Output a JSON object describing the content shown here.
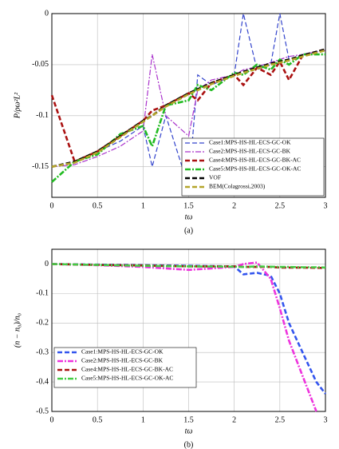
{
  "chart_data": [
    {
      "type": "line",
      "caption": "(a)",
      "x_label": "tω",
      "y_label": "P/ρω²L²",
      "x": [
        0,
        0.25,
        0.5,
        0.75,
        1,
        1.1,
        1.25,
        1.5,
        1.6,
        1.75,
        2,
        2.1,
        2.25,
        2.4,
        2.5,
        2.6,
        2.75,
        3
      ],
      "xlim": [
        0,
        3
      ],
      "xticks": [
        0,
        0.5,
        1,
        1.5,
        2,
        2.5,
        3
      ],
      "ylim": [
        -0.18,
        0
      ],
      "yticks": [
        0,
        -0.05,
        -0.1,
        -0.15
      ],
      "grid": true,
      "legend": "lower right",
      "series": [
        {
          "name": "Case1:MPS-HS-HL-ECS-GC-OK",
          "color": "#3344cc",
          "dash": "dash",
          "thick": false,
          "values": [
            -0.15,
            -0.145,
            -0.135,
            -0.125,
            -0.11,
            -0.15,
            -0.1,
            -0.17,
            -0.06,
            -0.07,
            -0.06,
            0,
            -0.055,
            -0.05,
            0,
            -0.045,
            -0.04,
            -0.035
          ]
        },
        {
          "name": "Case2:MPS-HS-HL-ECS-GC-BK",
          "color": "#aa33cc",
          "dash": "dashdot",
          "thick": false,
          "values": [
            -0.15,
            -0.148,
            -0.14,
            -0.13,
            -0.115,
            -0.04,
            -0.1,
            -0.12,
            -0.075,
            -0.065,
            -0.06,
            -0.055,
            -0.052,
            -0.048,
            -0.045,
            -0.042,
            -0.04,
            -0.036
          ]
        },
        {
          "name": "Case4:MPS-HS-HL-ECS-GC-BK-AC",
          "color": "#aa1111",
          "dash": "dash",
          "thick": true,
          "values": [
            -0.08,
            -0.145,
            -0.135,
            -0.12,
            -0.105,
            -0.095,
            -0.09,
            -0.078,
            -0.085,
            -0.068,
            -0.06,
            -0.07,
            -0.053,
            -0.06,
            -0.047,
            -0.065,
            -0.041,
            -0.035
          ]
        },
        {
          "name": "Case5:MPS-HS-HL-ECS-GC-OK-AC",
          "color": "#22bb22",
          "dash": "dashdot",
          "thick": true,
          "values": [
            -0.165,
            -0.145,
            -0.138,
            -0.118,
            -0.11,
            -0.13,
            -0.09,
            -0.085,
            -0.07,
            -0.075,
            -0.058,
            -0.06,
            -0.05,
            -0.055,
            -0.045,
            -0.05,
            -0.04,
            -0.04
          ]
        },
        {
          "name": "VOF",
          "color": "#000000",
          "dash": "dash",
          "thick": true,
          "values": [
            -0.15,
            -0.145,
            -0.135,
            -0.12,
            -0.105,
            -0.1,
            -0.09,
            -0.078,
            -0.074,
            -0.068,
            -0.06,
            -0.057,
            -0.053,
            -0.049,
            -0.047,
            -0.045,
            -0.041,
            -0.035
          ]
        },
        {
          "name": "BEM(Colagrossi,2003)",
          "color": "#b5a52a",
          "dash": "dash",
          "thick": true,
          "values": [
            -0.15,
            -0.146,
            -0.136,
            -0.121,
            -0.106,
            -0.1,
            -0.091,
            -0.079,
            -0.075,
            -0.069,
            -0.061,
            -0.058,
            -0.054,
            -0.05,
            -0.048,
            -0.046,
            -0.042,
            -0.036
          ]
        }
      ]
    },
    {
      "type": "line",
      "caption": "(b)",
      "x_label": "tω",
      "y_label": "(n − n₀)/n₀",
      "x": [
        0,
        0.5,
        1,
        1.5,
        2,
        2.1,
        2.25,
        2.4,
        2.5,
        2.6,
        2.75,
        2.9,
        3
      ],
      "xlim": [
        0,
        3
      ],
      "xticks": [
        0,
        0.5,
        1,
        1.5,
        2,
        2.5,
        3
      ],
      "ylim": [
        -0.5,
        0.05
      ],
      "yticks": [
        0,
        -0.1,
        -0.2,
        -0.3,
        -0.4,
        -0.5
      ],
      "grid": true,
      "legend": "lower left",
      "series": [
        {
          "name": "Case1:MPS-HS-HL-ECS-GC-OK",
          "color": "#3355ee",
          "dash": "dash",
          "thick": true,
          "values": [
            0,
            -0.002,
            -0.004,
            -0.006,
            -0.008,
            -0.035,
            -0.03,
            -0.04,
            -0.1,
            -0.2,
            -0.3,
            -0.4,
            -0.44
          ]
        },
        {
          "name": "Case2:MPS-HS-HL-ECS-GC-BK",
          "color": "#ee33dd",
          "dash": "dashdot",
          "thick": true,
          "values": [
            0,
            -0.004,
            -0.01,
            -0.02,
            -0.01,
            0,
            0.005,
            -0.05,
            -0.15,
            -0.26,
            -0.38,
            -0.5,
            null
          ]
        },
        {
          "name": "Case4:MPS-HS-HL-ECS-GC-BK-AC",
          "color": "#aa1111",
          "dash": "dash",
          "thick": true,
          "values": [
            0,
            -0.003,
            -0.005,
            -0.008,
            -0.008,
            -0.01,
            -0.01,
            -0.01,
            -0.012,
            -0.012,
            -0.012,
            -0.013,
            -0.013
          ]
        },
        {
          "name": "Case5:MPS-HS-HL-ECS-GC-OK-AC",
          "color": "#44cc44",
          "dash": "dashdot",
          "thick": true,
          "values": [
            0,
            -0.003,
            -0.006,
            -0.008,
            -0.009,
            -0.01,
            -0.008,
            -0.009,
            -0.01,
            -0.01,
            -0.011,
            -0.011,
            -0.012
          ]
        }
      ]
    }
  ]
}
